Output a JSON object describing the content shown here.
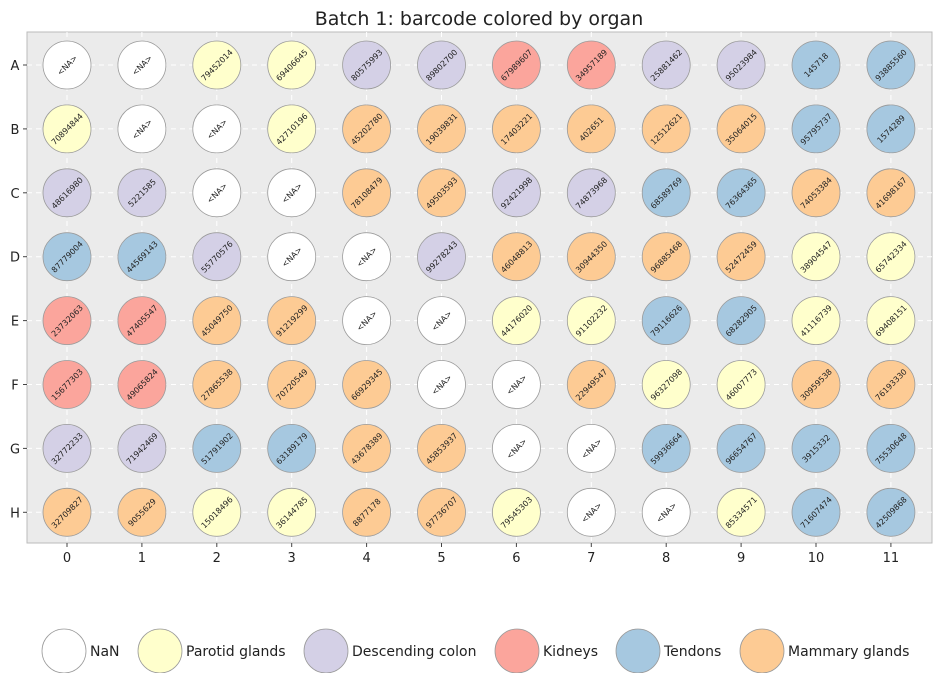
{
  "chart_data": {
    "type": "plate-map",
    "title": "Batch 1: barcode colored by organ",
    "rows": [
      "A",
      "B",
      "C",
      "D",
      "E",
      "F",
      "G",
      "H"
    ],
    "columns": [
      "0",
      "1",
      "2",
      "3",
      "4",
      "5",
      "6",
      "7",
      "8",
      "9",
      "10",
      "11"
    ],
    "colors": {
      "NaN": "#ffffff",
      "Parotid glands": "#ffffcc",
      "Descending colon": "#d4d0e6",
      "Kidneys": "#fba59c",
      "Tendons": "#a6c8e0",
      "Mammary glands": "#fdcb94"
    },
    "legend": [
      "NaN",
      "Parotid glands",
      "Descending colon",
      "Kidneys",
      "Tendons",
      "Mammary glands"
    ],
    "wells": [
      [
        {
          "label": "<NA>",
          "organ": "NaN"
        },
        {
          "label": "<NA>",
          "organ": "NaN"
        },
        {
          "label": "79452014",
          "organ": "Parotid glands"
        },
        {
          "label": "69406645",
          "organ": "Parotid glands"
        },
        {
          "label": "80575993",
          "organ": "Descending colon"
        },
        {
          "label": "89802700",
          "organ": "Descending colon"
        },
        {
          "label": "67989607",
          "organ": "Kidneys"
        },
        {
          "label": "34957189",
          "organ": "Kidneys"
        },
        {
          "label": "25881462",
          "organ": "Descending colon"
        },
        {
          "label": "95023984",
          "organ": "Descending colon"
        },
        {
          "label": "145718",
          "organ": "Tendons"
        },
        {
          "label": "93885560",
          "organ": "Tendons"
        }
      ],
      [
        {
          "label": "70894844",
          "organ": "Parotid glands"
        },
        {
          "label": "<NA>",
          "organ": "NaN"
        },
        {
          "label": "<NA>",
          "organ": "NaN"
        },
        {
          "label": "42710196",
          "organ": "Parotid glands"
        },
        {
          "label": "45202780",
          "organ": "Mammary glands"
        },
        {
          "label": "19039831",
          "organ": "Mammary glands"
        },
        {
          "label": "17403221",
          "organ": "Mammary glands"
        },
        {
          "label": "402651",
          "organ": "Mammary glands"
        },
        {
          "label": "12512621",
          "organ": "Mammary glands"
        },
        {
          "label": "35064015",
          "organ": "Mammary glands"
        },
        {
          "label": "95795737",
          "organ": "Tendons"
        },
        {
          "label": "1574289",
          "organ": "Tendons"
        }
      ],
      [
        {
          "label": "48616980",
          "organ": "Descending colon"
        },
        {
          "label": "5221585",
          "organ": "Descending colon"
        },
        {
          "label": "<NA>",
          "organ": "NaN"
        },
        {
          "label": "<NA>",
          "organ": "NaN"
        },
        {
          "label": "78108479",
          "organ": "Mammary glands"
        },
        {
          "label": "49503593",
          "organ": "Mammary glands"
        },
        {
          "label": "92421998",
          "organ": "Descending colon"
        },
        {
          "label": "74873968",
          "organ": "Descending colon"
        },
        {
          "label": "68589769",
          "organ": "Tendons"
        },
        {
          "label": "76364365",
          "organ": "Tendons"
        },
        {
          "label": "74053384",
          "organ": "Mammary glands"
        },
        {
          "label": "41698167",
          "organ": "Mammary glands"
        }
      ],
      [
        {
          "label": "87779004",
          "organ": "Tendons"
        },
        {
          "label": "44569143",
          "organ": "Tendons"
        },
        {
          "label": "55770576",
          "organ": "Descending colon"
        },
        {
          "label": "<NA>",
          "organ": "NaN"
        },
        {
          "label": "<NA>",
          "organ": "NaN"
        },
        {
          "label": "99278243",
          "organ": "Descending colon"
        },
        {
          "label": "46048813",
          "organ": "Mammary glands"
        },
        {
          "label": "30944350",
          "organ": "Mammary glands"
        },
        {
          "label": "96885468",
          "organ": "Mammary glands"
        },
        {
          "label": "52472459",
          "organ": "Mammary glands"
        },
        {
          "label": "38904547",
          "organ": "Parotid glands"
        },
        {
          "label": "65742334",
          "organ": "Parotid glands"
        }
      ],
      [
        {
          "label": "23732063",
          "organ": "Kidneys"
        },
        {
          "label": "47405547",
          "organ": "Kidneys"
        },
        {
          "label": "45049750",
          "organ": "Mammary glands"
        },
        {
          "label": "91219299",
          "organ": "Mammary glands"
        },
        {
          "label": "<NA>",
          "organ": "NaN"
        },
        {
          "label": "<NA>",
          "organ": "NaN"
        },
        {
          "label": "44176020",
          "organ": "Parotid glands"
        },
        {
          "label": "91102232",
          "organ": "Parotid glands"
        },
        {
          "label": "79116626",
          "organ": "Tendons"
        },
        {
          "label": "68282905",
          "organ": "Tendons"
        },
        {
          "label": "41116739",
          "organ": "Parotid glands"
        },
        {
          "label": "69408151",
          "organ": "Parotid glands"
        }
      ],
      [
        {
          "label": "15677303",
          "organ": "Kidneys"
        },
        {
          "label": "49065824",
          "organ": "Kidneys"
        },
        {
          "label": "27865538",
          "organ": "Mammary glands"
        },
        {
          "label": "70720549",
          "organ": "Mammary glands"
        },
        {
          "label": "66929345",
          "organ": "Mammary glands"
        },
        {
          "label": "<NA>",
          "organ": "NaN"
        },
        {
          "label": "<NA>",
          "organ": "NaN"
        },
        {
          "label": "22949547",
          "organ": "Mammary glands"
        },
        {
          "label": "96327098",
          "organ": "Parotid glands"
        },
        {
          "label": "46007773",
          "organ": "Parotid glands"
        },
        {
          "label": "30959538",
          "organ": "Mammary glands"
        },
        {
          "label": "76193330",
          "organ": "Mammary glands"
        }
      ],
      [
        {
          "label": "32772233",
          "organ": "Descending colon"
        },
        {
          "label": "71942469",
          "organ": "Descending colon"
        },
        {
          "label": "51791902",
          "organ": "Tendons"
        },
        {
          "label": "63189179",
          "organ": "Tendons"
        },
        {
          "label": "43678389",
          "organ": "Mammary glands"
        },
        {
          "label": "45853937",
          "organ": "Mammary glands"
        },
        {
          "label": "<NA>",
          "organ": "NaN"
        },
        {
          "label": "<NA>",
          "organ": "NaN"
        },
        {
          "label": "59936664",
          "organ": "Tendons"
        },
        {
          "label": "96654767",
          "organ": "Tendons"
        },
        {
          "label": "3915332",
          "organ": "Tendons"
        },
        {
          "label": "75530648",
          "organ": "Tendons"
        }
      ],
      [
        {
          "label": "32709827",
          "organ": "Mammary glands"
        },
        {
          "label": "9055629",
          "organ": "Mammary glands"
        },
        {
          "label": "15018496",
          "organ": "Parotid glands"
        },
        {
          "label": "36144785",
          "organ": "Parotid glands"
        },
        {
          "label": "8877178",
          "organ": "Mammary glands"
        },
        {
          "label": "97736707",
          "organ": "Mammary glands"
        },
        {
          "label": "79545303",
          "organ": "Parotid glands"
        },
        {
          "label": "<NA>",
          "organ": "NaN"
        },
        {
          "label": "<NA>",
          "organ": "NaN"
        },
        {
          "label": "85334571",
          "organ": "Parotid glands"
        },
        {
          "label": "71607474",
          "organ": "Tendons"
        },
        {
          "label": "42509868",
          "organ": "Tendons"
        }
      ]
    ]
  }
}
